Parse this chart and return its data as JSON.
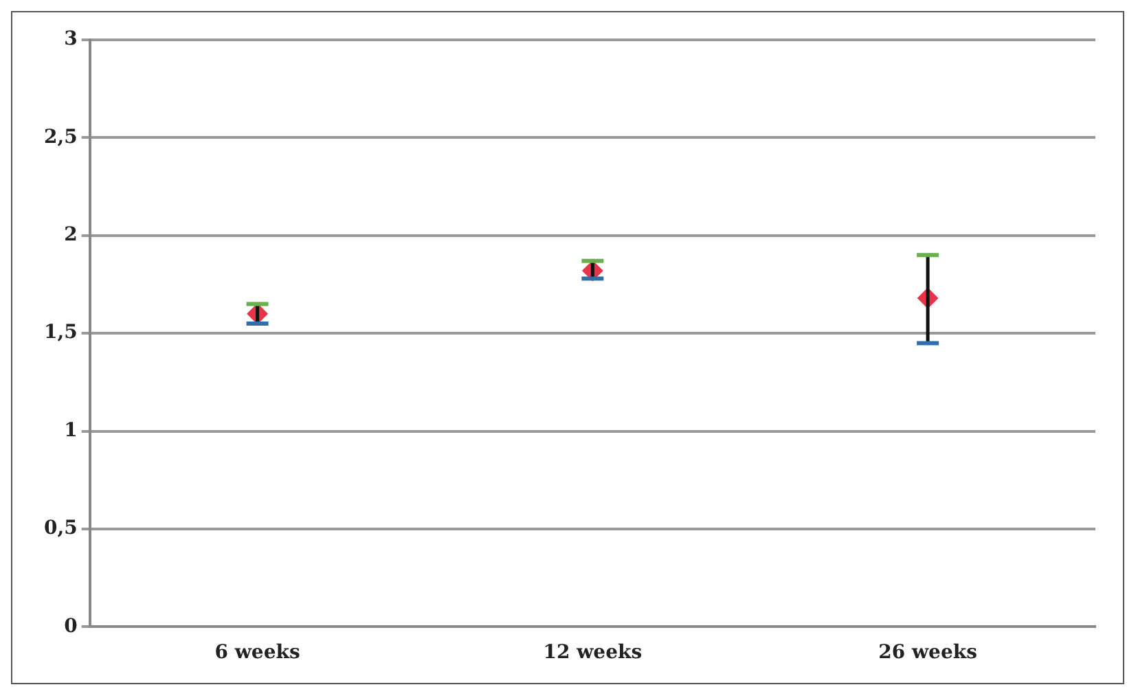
{
  "chart_data": {
    "type": "scatter",
    "categories": [
      "6 weeks",
      "12 weeks",
      "26 weeks"
    ],
    "series": [
      {
        "color": "#e8344a",
        "values": [
          1.6,
          1.82,
          1.68
        ],
        "errors": [
          [
            1.55,
            1.65
          ],
          [
            1.78,
            1.87
          ],
          [
            1.45,
            1.9
          ]
        ]
      }
    ],
    "ylim": [
      0,
      3
    ],
    "yticks": [
      0,
      {
        "value": 0.5,
        "label": "0,5"
      },
      1,
      {
        "value": 1.5,
        "label": "1,5"
      },
      2,
      {
        "value": 2.5,
        "label": "2,5"
      },
      3
    ],
    "grid": "y",
    "marker": "diamond",
    "legend": false
  }
}
